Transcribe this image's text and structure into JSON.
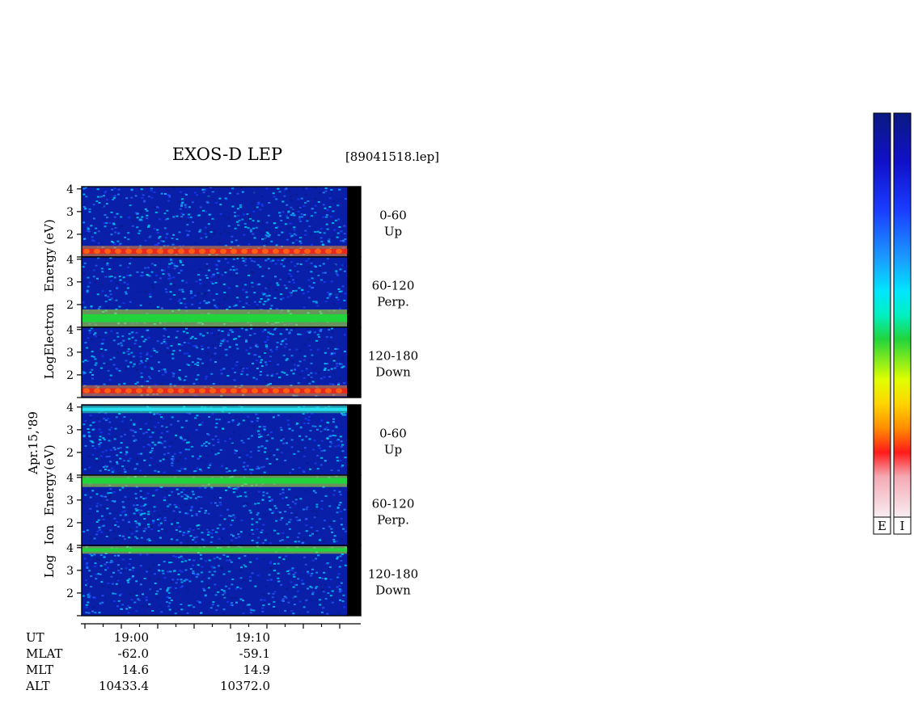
{
  "title": "EXOS-D LEP",
  "file_label": "[89041518.lep]",
  "date_label": "Apr.15,'89",
  "electron_axis_label": [
    "Log",
    "Electron",
    "Energy",
    "(eV)"
  ],
  "ion_axis_label": [
    "Log",
    "Ion",
    "Energy",
    "(eV)"
  ],
  "colors": {
    "background_low": "#0a1fa8",
    "band_red": "#e8281e",
    "band_orange": "#ff8c1a",
    "band_green": "#22d43c",
    "cyan": "#22e0f0",
    "black_bar": "#000000"
  },
  "chart_data": {
    "type": "heatmap",
    "instrument": "EXOS-D LEP",
    "y_scale": "log",
    "ylim": [
      1,
      4.1
    ],
    "y_ticks": [
      "4",
      "3",
      "2"
    ],
    "time_ticks": [
      "19:00",
      "19:10"
    ],
    "colorbars": [
      "E",
      "I"
    ],
    "colorscale": [
      "#f8eef2",
      "#f4a9b4",
      "#ff1a1a",
      "#ff8c00",
      "#ffd400",
      "#e0ff00",
      "#22d43c",
      "#00f0c0",
      "#00e5ff",
      "#1a9cff",
      "#1a3cff",
      "#1010c8",
      "#0a1a80"
    ],
    "panels": [
      {
        "species": "Electron",
        "pitch": "0-60",
        "direction": "Up",
        "band_center": 1.25,
        "band_width": 0.22,
        "band_level": "red"
      },
      {
        "species": "Electron",
        "pitch": "60-120",
        "direction": "Perp.",
        "band_center": 1.4,
        "band_width": 0.35,
        "band_level": "green"
      },
      {
        "species": "Electron",
        "pitch": "120-180",
        "direction": "Down",
        "band_center": 1.3,
        "band_width": 0.22,
        "band_level": "red"
      },
      {
        "species": "Ion",
        "pitch": "0-60",
        "direction": "Up",
        "band_center": 3.9,
        "band_width": 0.15,
        "band_level": "cyan"
      },
      {
        "species": "Ion",
        "pitch": "60-120",
        "direction": "Perp.",
        "band_center": 3.85,
        "band_width": 0.25,
        "band_level": "green"
      },
      {
        "species": "Ion",
        "pitch": "120-180",
        "direction": "Down",
        "band_center": 3.9,
        "band_width": 0.15,
        "band_level": "green"
      }
    ],
    "footer": {
      "rows": [
        {
          "label": "UT",
          "values": [
            "19:00",
            "19:10"
          ]
        },
        {
          "label": "MLAT",
          "values": [
            "-62.0",
            "-59.1"
          ]
        },
        {
          "label": "MLT",
          "values": [
            "14.6",
            "14.9"
          ]
        },
        {
          "label": "ALT",
          "values": [
            "10433.4",
            "10372.0"
          ]
        }
      ]
    }
  }
}
